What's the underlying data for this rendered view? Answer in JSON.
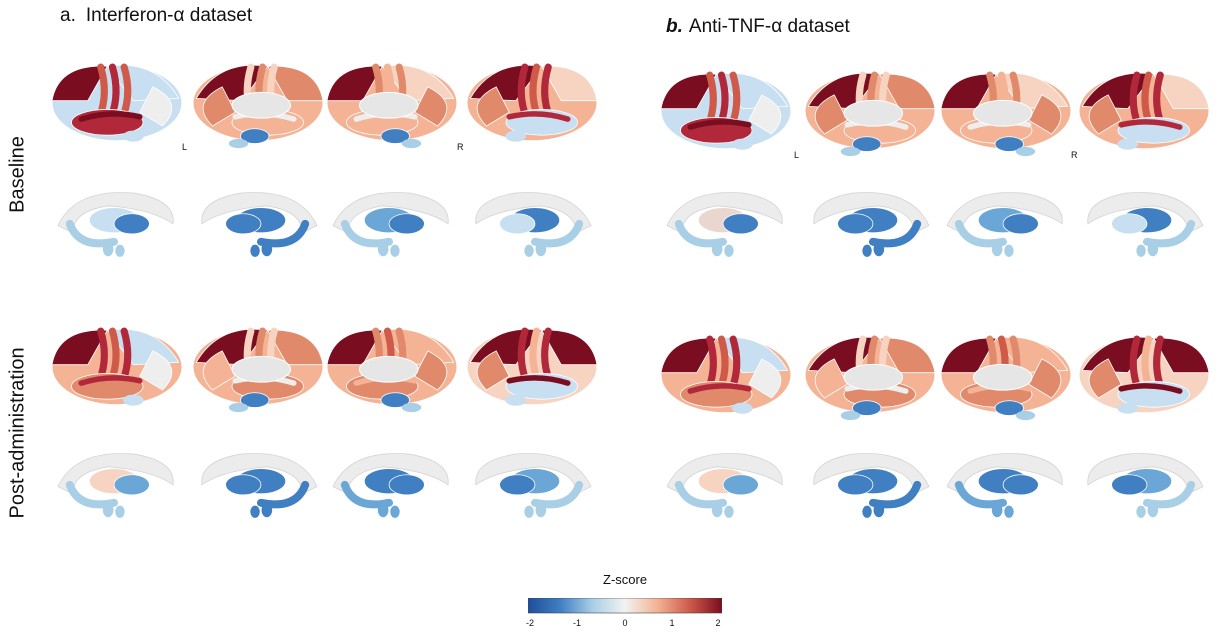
{
  "panels": [
    {
      "label": "a.",
      "title": "Interferon-α dataset",
      "hemi_left": "L",
      "hemi_right": "R"
    },
    {
      "label": "b.",
      "title": "Anti-TNF-α dataset",
      "hemi_left": "L",
      "hemi_right": "R"
    }
  ],
  "rows": [
    "Baseline",
    "Post-administration"
  ],
  "colorbar": {
    "title": "Z-score",
    "ticks": [
      "-2",
      "-1",
      "0",
      "1",
      "2"
    ],
    "range": [
      -2,
      2
    ],
    "colors": [
      "#1f4f9a",
      "#3f7fc2",
      "#a9cfe6",
      "#f2f2f2",
      "#f3b394",
      "#cf5a4a",
      "#7a0d1f"
    ]
  }
}
